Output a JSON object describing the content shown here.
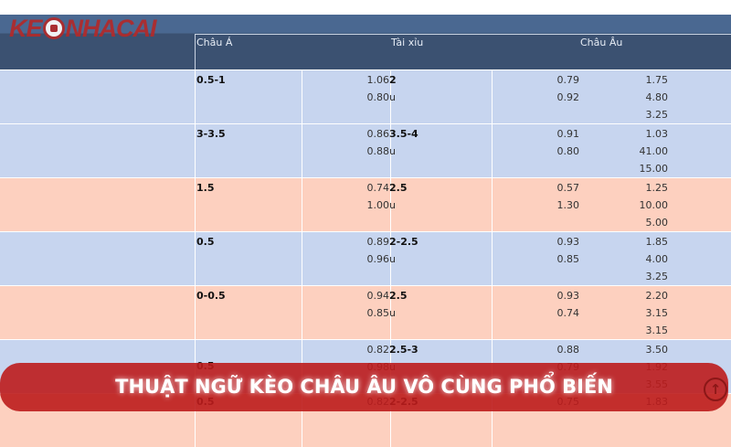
{
  "logo": {
    "text": "KEONHACAI"
  },
  "header": {
    "col_asia": "Châu Á",
    "col_ou": "Tài xỉu",
    "col_euro": "Châu Âu"
  },
  "rows": [
    {
      "bg": "blue",
      "handicap": "0.5-1",
      "odds1": "1.06",
      "ou_line": "2",
      "odds2": "0.80",
      "ou_suffix": "u",
      "ou1": "0.79",
      "ou2": "0.92",
      "e1": "1.75",
      "e2": "4.80",
      "e3": "3.25"
    },
    {
      "bg": "blue",
      "handicap": "3-3.5",
      "odds1": "0.86",
      "ou_line": "3.5-4",
      "odds2": "0.88",
      "ou_suffix": "u",
      "ou1": "0.91",
      "ou2": "0.80",
      "e1": "1.03",
      "e2": "41.00",
      "e3": "15.00"
    },
    {
      "bg": "peach",
      "handicap": "1.5",
      "odds1": "0.74",
      "ou_line": "2.5",
      "odds2": "1.00",
      "ou_suffix": "u",
      "ou1": "0.57",
      "ou2": "1.30",
      "e1": "1.25",
      "e2": "10.00",
      "e3": "5.00"
    },
    {
      "bg": "blue",
      "handicap": "0.5",
      "odds1": "0.89",
      "ou_line": "2-2.5",
      "odds2": "0.96",
      "ou_suffix": "u",
      "ou1": "0.93",
      "ou2": "0.85",
      "e1": "1.85",
      "e2": "4.00",
      "e3": "3.25"
    },
    {
      "bg": "peach",
      "handicap": "0-0.5",
      "odds1": "0.94",
      "ou_line": "2.5",
      "odds2": "0.85",
      "ou_suffix": "u",
      "ou1": "0.93",
      "ou2": "0.74",
      "e1": "2.20",
      "e2": "3.15",
      "e3": "3.15"
    },
    {
      "bg": "blue",
      "handicap": "0.5",
      "odds1": "0.82",
      "ou_line": "2.5-3",
      "odds2": "0.98",
      "ou_suffix": "u",
      "ou1": "0.88",
      "ou2": "0.79",
      "e1": "3.50",
      "e2": "1.92",
      "e3": "3.55"
    },
    {
      "bg": "peach",
      "handicap": "0.5",
      "odds1": "0.82",
      "ou_line": "2-2.5",
      "odds2": "",
      "ou_suffix": "",
      "ou1": "0.75",
      "ou2": "",
      "e1": "1.83",
      "e2": "",
      "e3": ""
    }
  ],
  "banner": {
    "title": "THUẬT NGỮ KÈO CHÂU ÂU VÔ CÙNG PHỔ BIẾN",
    "icon": "arrow-up-circle-icon",
    "color": "#bc1c1c"
  },
  "colors": {
    "header": "#3b5171",
    "row_blue": "#c7d5ef",
    "row_peach": "#fdd0bf"
  }
}
